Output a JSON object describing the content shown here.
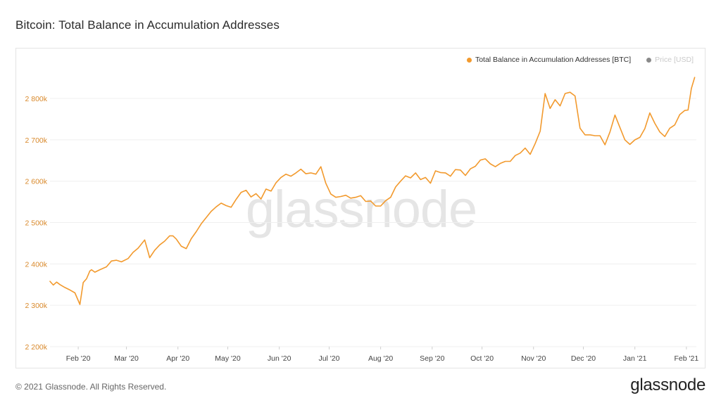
{
  "page": {
    "title": "Bitcoin: Total Balance in Accumulation Addresses",
    "footer_copyright": "© 2021 Glassnode. All Rights Reserved.",
    "footer_logo": "glassnode",
    "watermark": "glassnode"
  },
  "colors": {
    "series": "#f29a2e",
    "price_dot": "#8a8a8a",
    "grid": "#efefef",
    "ytick": "#d9892b"
  },
  "legend": {
    "items": [
      {
        "label": "Total Balance in Accumulation Addresses [BTC]",
        "active": true
      },
      {
        "label": "Price [USD]",
        "active": false
      }
    ]
  },
  "chart_data": {
    "type": "line",
    "title": "Bitcoin: Total Balance in Accumulation Addresses",
    "xlabel": "",
    "ylabel": "",
    "y_tick_labels": [
      "2 200k",
      "2 300k",
      "2 400k",
      "2 500k",
      "2 600k",
      "2 700k",
      "2 800k"
    ],
    "y_ticks": [
      2200000,
      2300000,
      2400000,
      2500000,
      2600000,
      2700000,
      2800000
    ],
    "ylim": [
      2200000,
      2880000
    ],
    "x_tick_labels": [
      "Feb '20",
      "Mar '20",
      "Apr '20",
      "May '20",
      "Jun '20",
      "Jul '20",
      "Aug '20",
      "Sep '20",
      "Oct '20",
      "Nov '20",
      "Dec '20",
      "Jan '21",
      "Feb '21"
    ],
    "x_ticks": [
      "2020-02-01",
      "2020-03-01",
      "2020-04-01",
      "2020-05-01",
      "2020-06-01",
      "2020-07-01",
      "2020-08-01",
      "2020-09-01",
      "2020-10-01",
      "2020-11-01",
      "2020-12-01",
      "2021-01-01",
      "2021-02-01"
    ],
    "xlim": [
      "2020-01-15",
      "2021-02-07"
    ],
    "grid": "horizontal",
    "legend_position": "top-right",
    "series": [
      {
        "name": "Total Balance in Accumulation Addresses [BTC]",
        "x": [
          "2020-01-15",
          "2020-01-17",
          "2020-01-19",
          "2020-01-21",
          "2020-01-24",
          "2020-01-27",
          "2020-01-30",
          "2020-02-02",
          "2020-02-04",
          "2020-02-06",
          "2020-02-08",
          "2020-02-09",
          "2020-02-11",
          "2020-02-14",
          "2020-02-18",
          "2020-02-21",
          "2020-02-24",
          "2020-02-27",
          "2020-03-02",
          "2020-03-05",
          "2020-03-08",
          "2020-03-12",
          "2020-03-15",
          "2020-03-18",
          "2020-03-21",
          "2020-03-24",
          "2020-03-27",
          "2020-03-29",
          "2020-03-31",
          "2020-04-03",
          "2020-04-06",
          "2020-04-09",
          "2020-04-12",
          "2020-04-15",
          "2020-04-18",
          "2020-04-21",
          "2020-04-24",
          "2020-04-27",
          "2020-04-30",
          "2020-05-03",
          "2020-05-06",
          "2020-05-09",
          "2020-05-12",
          "2020-05-15",
          "2020-05-18",
          "2020-05-21",
          "2020-05-24",
          "2020-05-27",
          "2020-05-30",
          "2020-06-02",
          "2020-06-05",
          "2020-06-08",
          "2020-06-11",
          "2020-06-14",
          "2020-06-17",
          "2020-06-20",
          "2020-06-23",
          "2020-06-26",
          "2020-06-29",
          "2020-07-02",
          "2020-07-05",
          "2020-07-08",
          "2020-07-11",
          "2020-07-14",
          "2020-07-17",
          "2020-07-20",
          "2020-07-23",
          "2020-07-26",
          "2020-07-29",
          "2020-08-01",
          "2020-08-04",
          "2020-08-07",
          "2020-08-10",
          "2020-08-13",
          "2020-08-16",
          "2020-08-19",
          "2020-08-22",
          "2020-08-25",
          "2020-08-28",
          "2020-08-31",
          "2020-09-03",
          "2020-09-06",
          "2020-09-09",
          "2020-09-12",
          "2020-09-15",
          "2020-09-18",
          "2020-09-21",
          "2020-09-24",
          "2020-09-27",
          "2020-09-30",
          "2020-10-03",
          "2020-10-06",
          "2020-10-09",
          "2020-10-12",
          "2020-10-15",
          "2020-10-18",
          "2020-10-21",
          "2020-10-24",
          "2020-10-27",
          "2020-10-30",
          "2020-11-02",
          "2020-11-05",
          "2020-11-08",
          "2020-11-11",
          "2020-11-14",
          "2020-11-17",
          "2020-11-20",
          "2020-11-23",
          "2020-11-26",
          "2020-11-29",
          "2020-12-02",
          "2020-12-05",
          "2020-12-08",
          "2020-12-11",
          "2020-12-14",
          "2020-12-17",
          "2020-12-20",
          "2020-12-23",
          "2020-12-26",
          "2020-12-29",
          "2021-01-01",
          "2021-01-04",
          "2021-01-07",
          "2021-01-10",
          "2021-01-13",
          "2021-01-16",
          "2021-01-19",
          "2021-01-22",
          "2021-01-25",
          "2021-01-28",
          "2021-01-31",
          "2021-02-02",
          "2021-02-04",
          "2021-02-06"
        ],
        "values": [
          2358000,
          2349000,
          2356000,
          2350000,
          2343000,
          2337000,
          2330000,
          2302000,
          2355000,
          2364000,
          2383000,
          2386000,
          2380000,
          2386000,
          2393000,
          2407000,
          2409000,
          2405000,
          2413000,
          2428000,
          2438000,
          2458000,
          2415000,
          2433000,
          2446000,
          2455000,
          2468000,
          2468000,
          2460000,
          2443000,
          2437000,
          2461000,
          2478000,
          2497000,
          2512000,
          2527000,
          2538000,
          2547000,
          2541000,
          2537000,
          2556000,
          2573000,
          2578000,
          2562000,
          2570000,
          2557000,
          2581000,
          2576000,
          2596000,
          2609000,
          2617000,
          2612000,
          2620000,
          2629000,
          2618000,
          2620000,
          2617000,
          2635000,
          2595000,
          2569000,
          2561000,
          2563000,
          2566000,
          2559000,
          2561000,
          2565000,
          2551000,
          2552000,
          2540000,
          2540000,
          2553000,
          2561000,
          2586000,
          2600000,
          2613000,
          2608000,
          2620000,
          2604000,
          2609000,
          2595000,
          2625000,
          2621000,
          2620000,
          2612000,
          2628000,
          2627000,
          2614000,
          2630000,
          2636000,
          2651000,
          2654000,
          2642000,
          2635000,
          2643000,
          2648000,
          2648000,
          2662000,
          2668000,
          2680000,
          2665000,
          2691000,
          2721000,
          2812000,
          2776000,
          2797000,
          2782000,
          2812000,
          2815000,
          2806000,
          2728000,
          2712000,
          2712000,
          2710000,
          2710000,
          2688000,
          2719000,
          2760000,
          2730000,
          2700000,
          2689000,
          2700000,
          2706000,
          2727000,
          2765000,
          2740000,
          2719000,
          2708000,
          2728000,
          2736000,
          2761000,
          2771000,
          2772000,
          2824000,
          2851000
        ]
      }
    ]
  }
}
